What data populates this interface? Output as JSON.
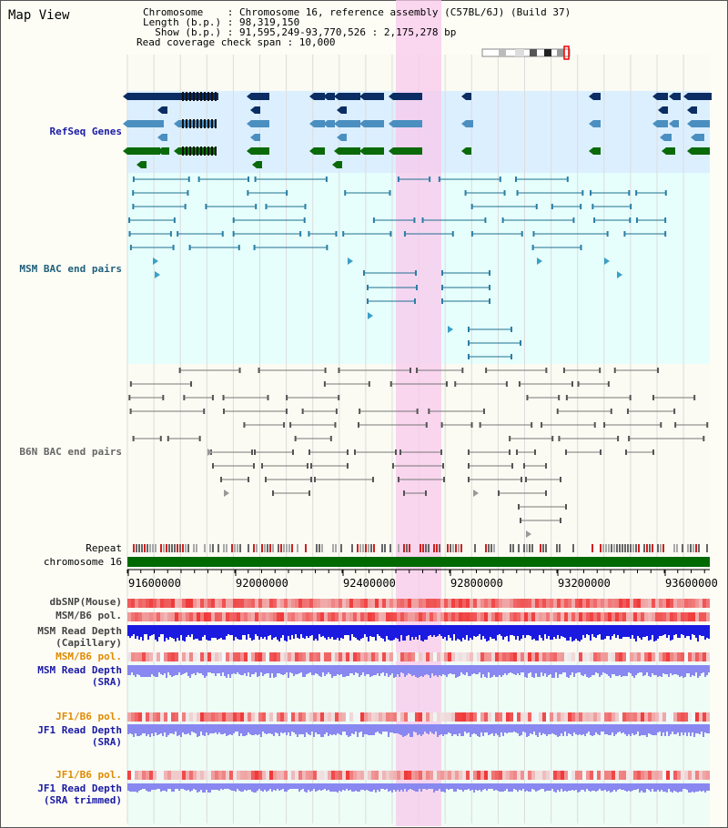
{
  "page": {
    "title": "Map View"
  },
  "header": {
    "chromosome_label": "Chromosome    : Chromosome 16, reference assembly (C57BL/6J) (Build 37)",
    "length_label": "Length (b.p.) : 98,319,150",
    "show_label": "  Show (b.p.) : 91,595,249-93,770,526 : 2,175,278 bp",
    "span_label": "Read coverage check span : 10,000"
  },
  "tracks": {
    "refseq": {
      "label": "RefSeq Genes",
      "color": "#1a1aa6"
    },
    "msm_bac": {
      "label": "MSM BAC end pairs",
      "color": "#1f5f7a"
    },
    "b6n_bac": {
      "label": "B6N BAC end pairs",
      "color": "#666666"
    },
    "repeat": {
      "label": "Repeat"
    },
    "chromosome": {
      "label": "chromosome 16",
      "color": "#006a00"
    },
    "dbsnp": {
      "label": "dbSNP(Mouse)"
    },
    "msm_b6_pol": {
      "label": "MSM/B6 pol."
    },
    "msm_depth_cap": {
      "label": "MSM Read Depth\n(Capillary)"
    },
    "msm_b6_pol2": {
      "label": "MSM/B6 pol.",
      "color": "#e08a00"
    },
    "msm_depth_sra": {
      "label": "MSM Read Depth\n(SRA)",
      "color": "#1a1aa6"
    },
    "jf1_b6_pol": {
      "label": "JF1/B6 pol.",
      "color": "#e08a00"
    },
    "jf1_depth_sra": {
      "label": "JF1 Read Depth\n(SRA)",
      "color": "#1a1aa6"
    },
    "jf1_b6_pol2": {
      "label": "JF1/B6 pol.",
      "color": "#e08a00"
    },
    "jf1_depth_trim": {
      "label": "JF1 Read Depth\n(SRA trimmed)",
      "color": "#1a1aa6"
    }
  },
  "axis": {
    "ticks": [
      "91600000",
      "92000000",
      "92400000",
      "92800000",
      "93200000",
      "93600000"
    ]
  },
  "colors": {
    "highlight": "#f8c8ec",
    "refseq_bg": "#dcefff",
    "msm_bg": "#e6fffd",
    "dark_gene": "#0b2d63",
    "mid_gene": "#4b8fc0",
    "green_gene": "#0a6a0a",
    "snp_red": "#f04040",
    "depth_blue": "#1a1ae0",
    "depth_light": "#8888f0"
  }
}
